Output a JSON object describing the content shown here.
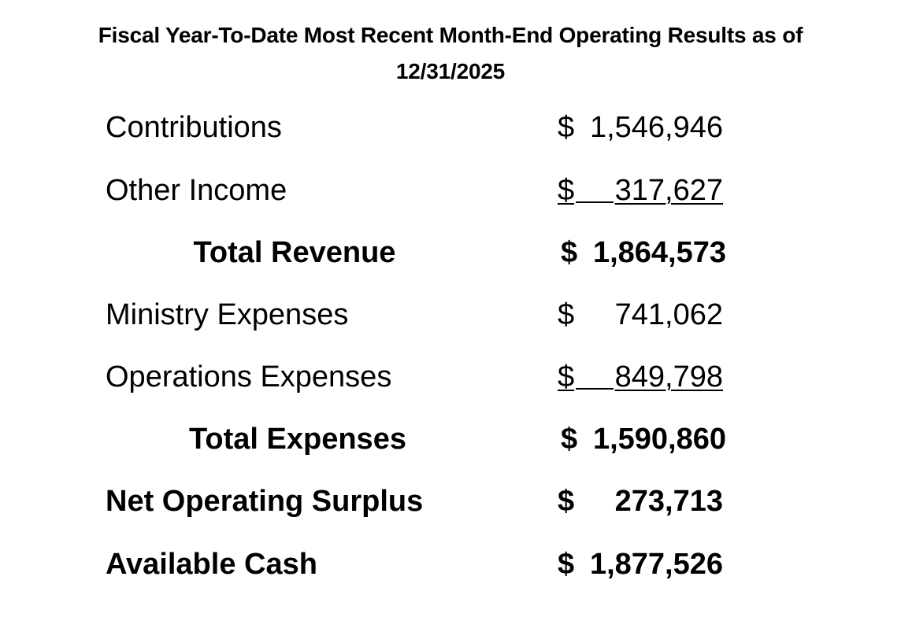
{
  "title": {
    "line1": "Fiscal Year-To-Date Most Recent Month-End Operating Results as of",
    "line2": "12/31/2025"
  },
  "rows": [
    {
      "label": "Contributions",
      "currency": "$",
      "amount": "1,546,946"
    },
    {
      "label": "Other Income",
      "currency": "$",
      "amount": "317,627"
    },
    {
      "label": "Total Revenue",
      "currency": "$",
      "amount": "1,864,573"
    },
    {
      "label": "Ministry Expenses",
      "currency": "$",
      "amount": "741,062"
    },
    {
      "label": "Operations Expenses",
      "currency": "$",
      "amount": "849,798"
    },
    {
      "label": "Total Expenses",
      "currency": "$",
      "amount": "1,590,860"
    },
    {
      "label": "Net Operating Surplus",
      "currency": "$",
      "amount": "273,713"
    },
    {
      "label": "Available Cash",
      "currency": "$",
      "amount": "1,877,526"
    }
  ]
}
